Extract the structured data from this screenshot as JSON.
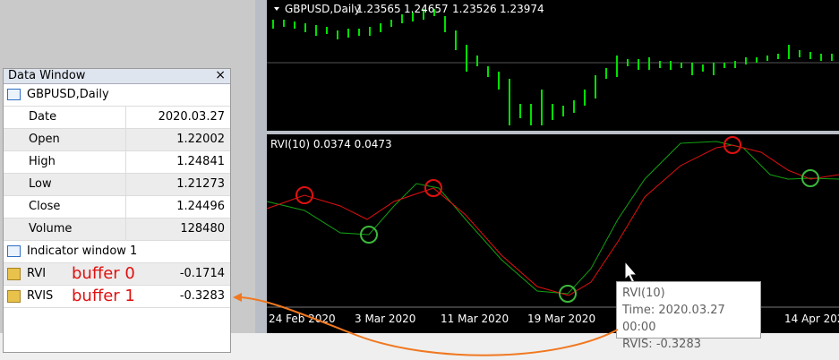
{
  "chart_window": {
    "header": {
      "symbol": "GBPUSD,Daily",
      "ohlc": [
        "1.23565",
        "1.24657",
        "1.23526",
        "1.23974"
      ]
    },
    "indicator_label": "RVI(10) 0.0374 0.0473",
    "x_axis_labels": [
      "24 Feb 2020",
      "3 Mar 2020",
      "11 Mar 2020",
      "19 Mar 2020",
      "14 Apr 2020"
    ],
    "tooltip": {
      "title": "RVI(10)",
      "time": "Time: 2020.03.27 00:00",
      "value": "RVIS: -0.3283"
    }
  },
  "data_window": {
    "title": "Data Window",
    "symbol": "GBPUSD,Daily",
    "rows": [
      [
        "Date",
        "2020.03.27"
      ],
      [
        "Open",
        "1.22002"
      ],
      [
        "High",
        "1.24841"
      ],
      [
        "Low",
        "1.21273"
      ],
      [
        "Close",
        "1.24496"
      ],
      [
        "Volume",
        "128480"
      ]
    ],
    "indicator_window": "Indicator window 1",
    "buffers": [
      [
        "RVI",
        "-0.1714"
      ],
      [
        "RVIS",
        "-0.3283"
      ]
    ]
  },
  "annotations": [
    "buffer 0",
    "buffer 1"
  ]
}
